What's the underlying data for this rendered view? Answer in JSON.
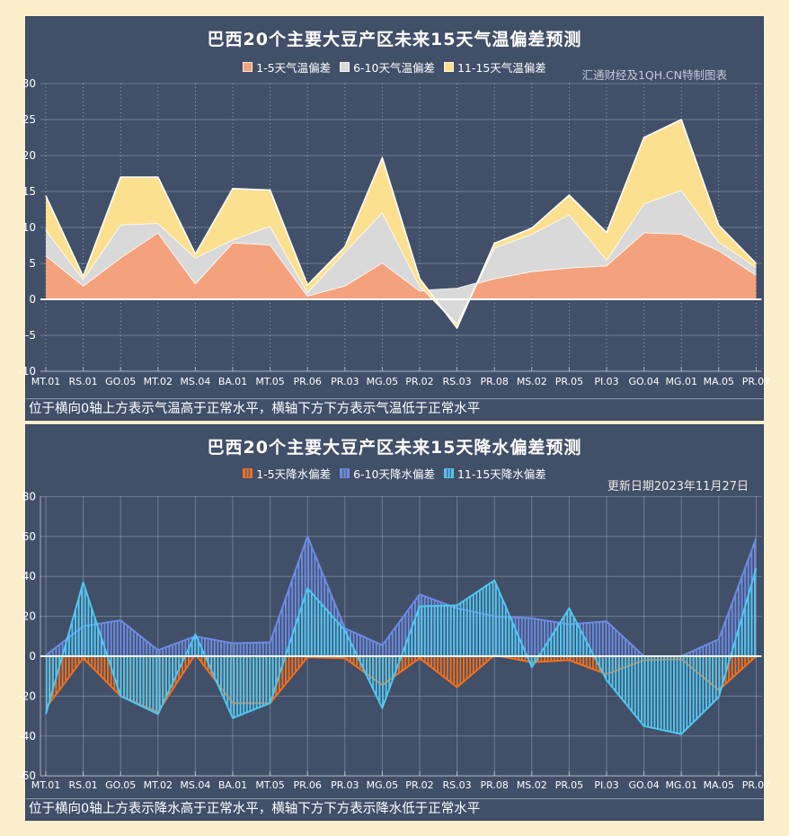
{
  "page": {
    "background_color": "#FBEECB",
    "panel_color": "#414F69"
  },
  "panels": [
    {
      "watermark": "汇通财经及1QH.CN特制图表",
      "footnote": "位于横向0轴上方表示气温高于正常水平，横轴下方下方表示气温低于正常水平"
    },
    {
      "watermark": "更新日期2023年11月27日",
      "footnote": "位于横向0轴上方表示降水高于正常水平，横轴下方下方表示降水低于正常水平"
    }
  ],
  "chart_data": [
    {
      "type": "area",
      "title": "巴西20个主要大豆产区未来15天气温偏差预测",
      "categories": [
        "MT.01",
        "RS.01",
        "GO.05",
        "MT.02",
        "MS.04",
        "BA.01",
        "MT.05",
        "PR.06",
        "PR.03",
        "MG.05",
        "PR.02",
        "RS.03",
        "PR.08",
        "MS.02",
        "PR.05",
        "PI.03",
        "GO.04",
        "MG.01",
        "MA.05",
        "PR.07"
      ],
      "series_note": "values are the visible top boundary of each stacked band (deviation, °C)",
      "series": [
        {
          "name": "1-5天气温偏差",
          "color": "#F4A27D",
          "values": [
            6.1,
            1.9,
            5.8,
            9.3,
            2.2,
            7.9,
            7.6,
            0.5,
            1.9,
            5.1,
            1.2,
            1.5,
            2.9,
            3.9,
            4.4,
            4.7,
            9.3,
            9.1,
            6.8,
            3.4
          ]
        },
        {
          "name": "6-10天气温偏差",
          "color": "#D9D9D9",
          "values": [
            9.7,
            2.8,
            10.4,
            10.6,
            5.8,
            8.3,
            10.2,
            1.0,
            6.6,
            12.1,
            1.9,
            -3.5,
            7.2,
            9.1,
            11.8,
            5.5,
            13.3,
            15.2,
            8.0,
            4.5
          ]
        },
        {
          "name": "11-15天气温偏差",
          "color": "#FBE08F",
          "values": [
            14.4,
            3.2,
            17.0,
            17.0,
            6.3,
            15.4,
            15.2,
            2.0,
            7.3,
            19.7,
            2.9,
            -4.0,
            7.8,
            9.9,
            14.5,
            9.3,
            22.5,
            25.0,
            10.3,
            5.0
          ]
        }
      ],
      "ylim": [
        -10,
        30
      ],
      "ytick_step": 5,
      "grid": true,
      "legend_position": "top"
    },
    {
      "type": "area",
      "title": "巴西20个主要大豆产区未来15天降水偏差预测",
      "categories": [
        "MT.01",
        "RS.01",
        "GO.05",
        "MT.02",
        "MS.04",
        "BA.01",
        "MT.05",
        "PR.06",
        "PR.03",
        "MG.05",
        "PR.02",
        "RS.03",
        "PR.08",
        "MS.02",
        "PR.05",
        "PI.03",
        "GO.04",
        "MG.01",
        "MA.05",
        "PR.07"
      ],
      "series_note": "overlaid hatched areas from zero baseline (deviation, mm)",
      "series": [
        {
          "name": "1-5天降水偏差",
          "color": "#F2701B",
          "values": [
            -26,
            -1,
            -20,
            -28,
            1,
            -23.5,
            -23.5,
            -0.5,
            -1,
            -14.5,
            -1,
            -15.5,
            0.5,
            -3,
            -2,
            -9,
            -2,
            -1.5,
            -17,
            0
          ]
        },
        {
          "name": "6-10天降水偏差",
          "color": "#6C8CE2",
          "values": [
            0.5,
            15,
            18,
            3,
            10,
            6.5,
            7,
            60,
            14,
            5.5,
            31,
            24,
            20,
            19,
            16,
            17.5,
            0,
            0,
            8.5,
            59
          ]
        },
        {
          "name": "11-15天降水偏差",
          "color": "#50C6F0",
          "values": [
            -29,
            37,
            -20,
            -29,
            11,
            -31,
            -23.5,
            34,
            13,
            -26,
            25,
            25.5,
            38,
            -5.5,
            24,
            -12,
            -35,
            -39,
            -20.5,
            44
          ]
        }
      ],
      "ylim": [
        -60,
        80
      ],
      "ytick_step": 20,
      "grid": true,
      "legend_position": "top"
    }
  ]
}
